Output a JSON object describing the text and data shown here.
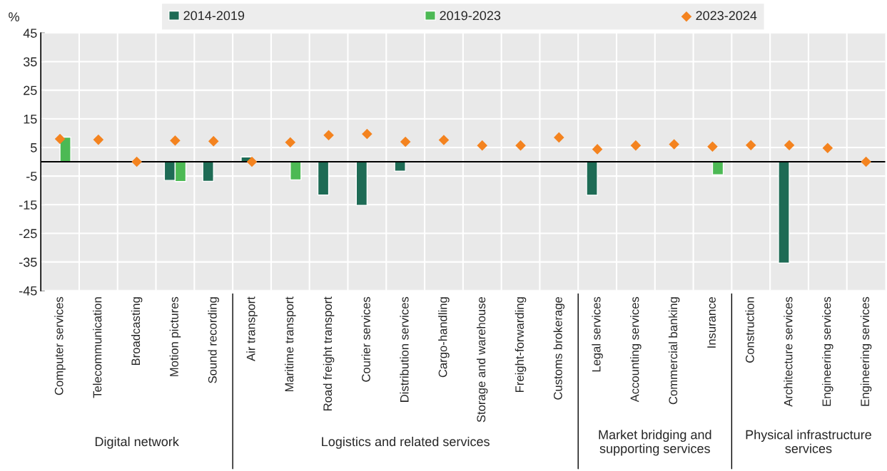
{
  "chart_data": {
    "type": "bar",
    "categories": [
      "Computer services",
      "Telecommunication",
      "Broadcasting",
      "Motion pictures",
      "Sound recording",
      "Air transport",
      "Maritime transport",
      "Road freight transport",
      "Courier services",
      "Distribution services",
      "Cargo-handling",
      "Storage and warehouse",
      "Freight-forwarding",
      "Customs brokerage",
      "Legal services",
      "Accounting services",
      "Commercial banking",
      "Insurance",
      "Construction",
      "Architecture services",
      "Engineering services",
      "Engineering services"
    ],
    "series": [
      {
        "name": "2014-2019",
        "color": "#1e6b55",
        "values": [
          null,
          null,
          null,
          -6.5,
          -6.8,
          1.7,
          null,
          -11.6,
          -15.2,
          -3.3,
          null,
          null,
          null,
          null,
          -11.7,
          null,
          null,
          null,
          null,
          -35.4,
          null,
          null
        ]
      },
      {
        "name": "2019-2023",
        "color": "#4cb954",
        "values": [
          8.6,
          null,
          null,
          -6.9,
          null,
          null,
          -6.3,
          null,
          null,
          null,
          null,
          null,
          null,
          null,
          null,
          null,
          null,
          -4.5,
          null,
          null,
          null,
          null
        ]
      },
      {
        "name": "2023-2024",
        "type": "scatter",
        "marker": "diamond",
        "color": "#f4831f",
        "values": [
          8.0,
          7.7,
          0,
          7.4,
          7.2,
          0,
          6.8,
          9.3,
          9.7,
          7.0,
          7.6,
          5.7,
          5.7,
          8.5,
          4.4,
          5.7,
          6.1,
          5.3,
          5.8,
          5.8,
          4.8,
          0
        ]
      }
    ],
    "ylabel": "%",
    "ylim": [
      -45,
      45
    ],
    "yticks": [
      -45,
      -35,
      -25,
      -15,
      -5,
      5,
      15,
      25,
      35,
      45
    ],
    "grid": true,
    "legend": "top",
    "annotations": [
      "Digital network",
      "Logistics and related services",
      "Market bridging and\nsupporting services",
      "Physical infrastructure\nservices"
    ]
  }
}
